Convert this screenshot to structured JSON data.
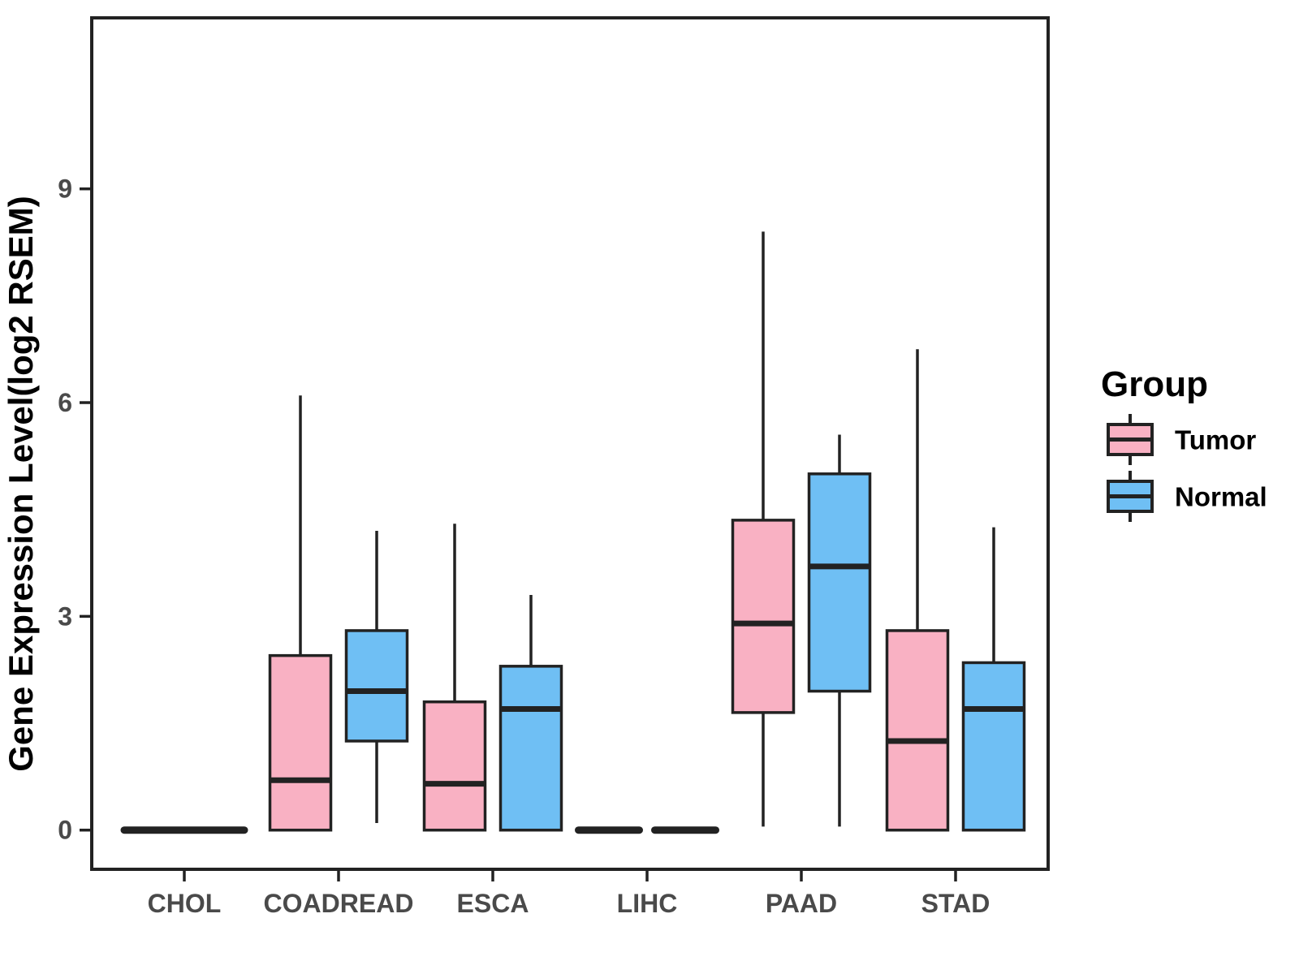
{
  "chart_data": {
    "type": "boxplot",
    "title": "",
    "xlabel": "",
    "ylabel": "Gene Expression Level(log2 RSEM)",
    "ylim": [
      -0.55,
      11.4
    ],
    "yticks": [
      0,
      3,
      6,
      9
    ],
    "grid": "off",
    "categories": [
      "CHOL",
      "COADREAD",
      "ESCA",
      "LIHC",
      "PAAD",
      "STAD"
    ],
    "series": [
      {
        "name": "Tumor",
        "color": "#F9B1C3",
        "boxes": [
          {
            "min": 0,
            "q1": 0,
            "median": 0,
            "q3": 0,
            "max": 0,
            "flat": true
          },
          {
            "min": 0,
            "q1": 0,
            "median": 0.7,
            "q3": 2.45,
            "max": 6.1
          },
          {
            "min": 0,
            "q1": 0,
            "median": 0.65,
            "q3": 1.8,
            "max": 4.3
          },
          {
            "min": 0,
            "q1": 0,
            "median": 0,
            "q3": 0,
            "max": 0,
            "flat": true
          },
          {
            "min": 0.05,
            "q1": 1.65,
            "median": 2.9,
            "q3": 4.35,
            "max": 8.4
          },
          {
            "min": 0,
            "q1": 0,
            "median": 1.25,
            "q3": 2.8,
            "max": 6.75
          }
        ]
      },
      {
        "name": "Normal",
        "color": "#6FBFF4",
        "boxes": [
          {
            "min": 0,
            "q1": 0,
            "median": 0,
            "q3": 0,
            "max": 0,
            "flat": true
          },
          {
            "min": 0.1,
            "q1": 1.25,
            "median": 1.95,
            "q3": 2.8,
            "max": 4.2
          },
          {
            "min": 0,
            "q1": 0,
            "median": 1.7,
            "q3": 2.3,
            "max": 3.3
          },
          {
            "min": 0,
            "q1": 0,
            "median": 0,
            "q3": 0,
            "max": 0,
            "flat": true
          },
          {
            "min": 0.05,
            "q1": 1.95,
            "median": 3.7,
            "q3": 5.0,
            "max": 5.55
          },
          {
            "min": 0,
            "q1": 0,
            "median": 1.7,
            "q3": 2.35,
            "max": 4.25
          }
        ]
      }
    ],
    "collapsed_display": {
      "CHOL": "merged",
      "LIHC": "separate"
    },
    "legend": {
      "title": "Group",
      "position": "right",
      "entries": [
        {
          "label": "Tumor",
          "color": "#F9B1C3"
        },
        {
          "label": "Normal",
          "color": "#6FBFF4"
        }
      ]
    },
    "styles": {
      "box_border": "#222222",
      "median_color": "#222222",
      "whisker_color": "#222222",
      "tick_label_color": "#4A4A4A",
      "axis_title_color": "#000000",
      "legend_text_color": "#000000",
      "background": "#FFFFFF"
    }
  }
}
